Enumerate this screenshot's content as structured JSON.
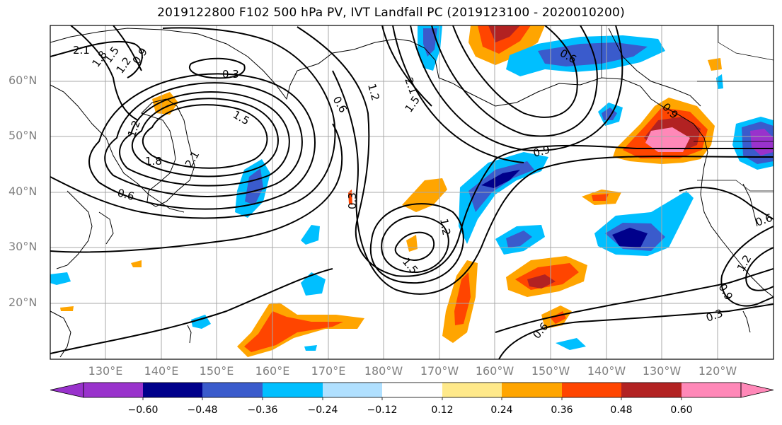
{
  "title": "2019122800 F102 500 hPa PV, IVT Landfall PC (2019123100 - 2020010200)",
  "lat_labels": [
    "60°N",
    "50°N",
    "40°N",
    "30°N",
    "20°N"
  ],
  "lon_labels": [
    "130°E",
    "140°E",
    "150°E",
    "160°E",
    "170°E",
    "180°W",
    "170°W",
    "160°W",
    "150°W",
    "140°W",
    "130°W",
    "120°W"
  ],
  "colorbar": {
    "colors": [
      "#9932cc",
      "#00008b",
      "#3a5bcc",
      "#00bfff",
      "#b0e0ff",
      "#ffffff",
      "#ffe98a",
      "#ffa500",
      "#ff4500",
      "#b22222",
      "#ff88b8"
    ],
    "tick_labels": [
      "−0.60",
      "−0.48",
      "−0.36",
      "−0.24",
      "−0.12",
      "0.12",
      "0.24",
      "0.36",
      "0.48",
      "0.60"
    ]
  },
  "contour_labels": [
    "2.1",
    "1.8",
    "1.5",
    "1.2",
    "0.9",
    "0.3",
    "0.6",
    "1.5",
    "1.2",
    "1.8",
    "2.1",
    "0.6",
    "1.2",
    "2.1",
    "1.5",
    "0.9",
    "0.3",
    "1.2",
    "1.5",
    "0.6",
    "0.6",
    "0.9",
    "1.2",
    "0.6",
    "0.3",
    "0.9"
  ]
}
